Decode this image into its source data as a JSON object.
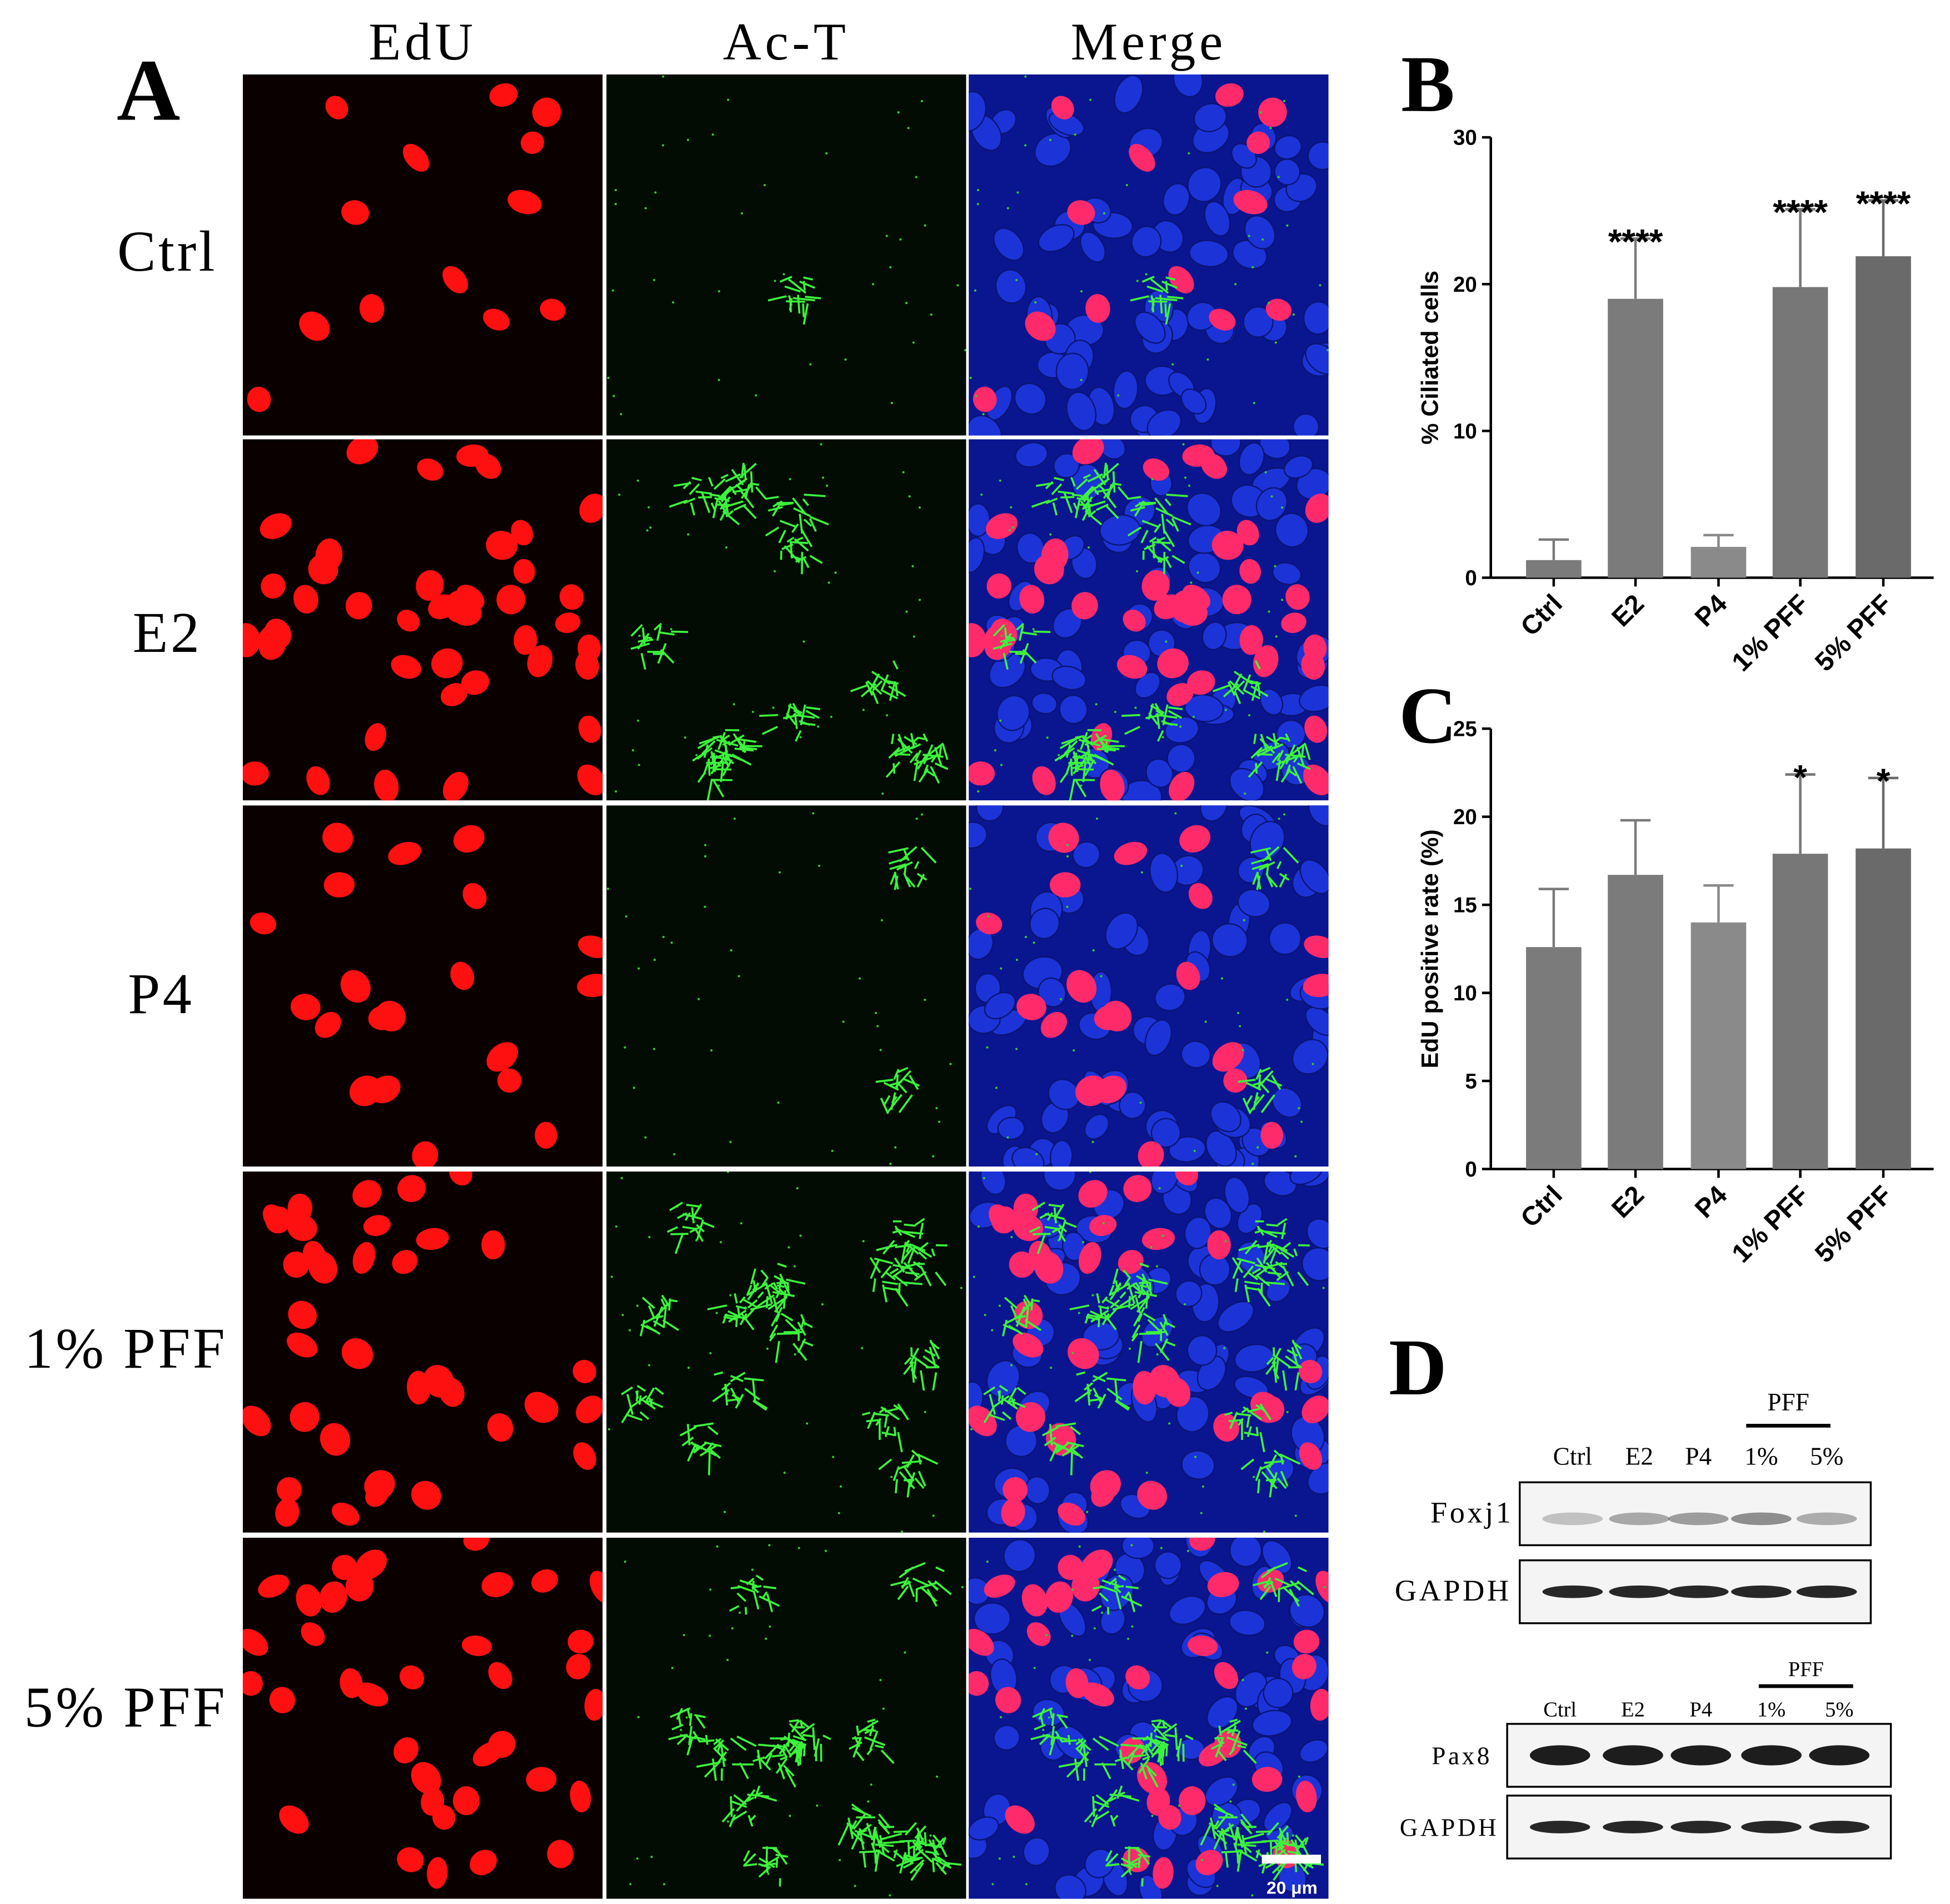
{
  "panel_a": {
    "label": "A",
    "columns": [
      "EdU",
      "Ac-T",
      "Merge"
    ],
    "rows": [
      "Ctrl",
      "E2",
      "P4",
      "1% PFF",
      "5% PFF"
    ],
    "scale_bar": "20 μm"
  },
  "chart_data": [
    {
      "type": "bar",
      "label": "B",
      "ylabel": "% Ciliated cells",
      "categories": [
        "Ctrl",
        "E2",
        "P4",
        "1% PFF",
        "5% PFF"
      ],
      "values": [
        1.2,
        19.0,
        2.1,
        19.8,
        21.9
      ],
      "errors": [
        1.4,
        4.1,
        0.8,
        5.3,
        3.8
      ],
      "annotations": [
        null,
        "****",
        null,
        "****",
        "****"
      ],
      "colors": [
        "#7b7b7b",
        "#7b7b7b",
        "#8a8a8a",
        "#777777",
        "#6a6a6a"
      ],
      "ylim": [
        0,
        30
      ],
      "yticks": [
        0,
        10,
        20,
        30
      ]
    },
    {
      "type": "bar",
      "label": "C",
      "ylabel": "EdU positive rate (%)",
      "categories": [
        "Ctrl",
        "E2",
        "P4",
        "1% PFF",
        "5% PFF"
      ],
      "values": [
        12.6,
        16.7,
        14.0,
        17.9,
        18.2
      ],
      "errors": [
        3.3,
        3.1,
        2.1,
        4.5,
        4.0
      ],
      "annotations": [
        null,
        null,
        null,
        "*",
        "*"
      ],
      "colors": [
        "#7b7b7b",
        "#7b7b7b",
        "#8a8a8a",
        "#777777",
        "#6a6a6a"
      ],
      "ylim": [
        0,
        25
      ],
      "yticks": [
        0,
        5,
        10,
        15,
        20,
        25
      ]
    }
  ],
  "panel_d": {
    "label": "D",
    "blots": [
      {
        "group_label": "PFF",
        "lanes": [
          "Ctrl",
          "E2",
          "P4",
          "1%",
          "5%"
        ],
        "rows": [
          "Foxj1",
          "GAPDH"
        ]
      },
      {
        "group_label": "PFF",
        "lanes": [
          "Ctrl",
          "E2",
          "P4",
          "1%",
          "5%"
        ],
        "rows": [
          "Pax8",
          "GAPDH"
        ]
      }
    ]
  }
}
